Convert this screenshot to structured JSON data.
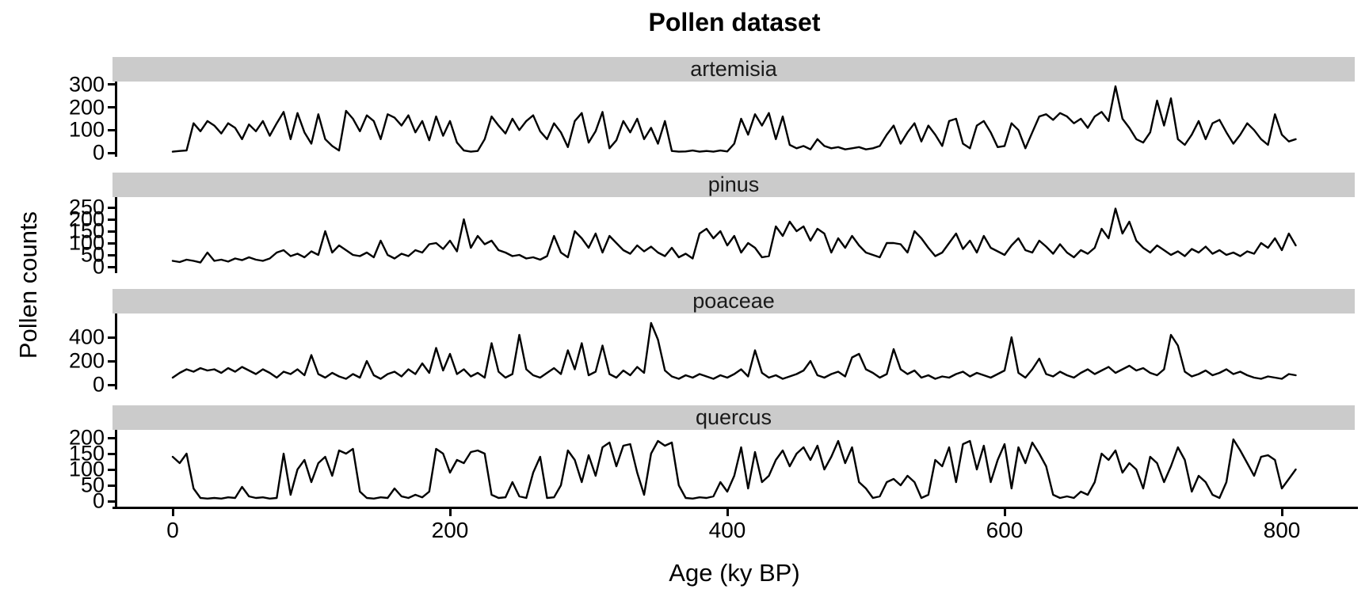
{
  "chart_data": {
    "type": "line",
    "title": "Pollen dataset",
    "xlabel": "Age (ky BP)",
    "ylabel": "Pollen counts",
    "legend": "none",
    "grid": "off",
    "line_color": "#000000",
    "strip_bg": "#CBCBCB",
    "xticks": [
      0,
      200,
      400,
      600,
      800
    ],
    "xlim": [
      0,
      812
    ],
    "x": {
      "start": 0,
      "step": 5,
      "unit": "ky BP"
    },
    "facets": [
      {
        "label": "artemisia",
        "yticks": [
          0,
          100,
          200,
          300
        ],
        "ylim": [
          0,
          300
        ],
        "values": [
          5,
          8,
          10,
          130,
          95,
          140,
          120,
          85,
          130,
          110,
          60,
          125,
          95,
          140,
          75,
          130,
          180,
          60,
          175,
          90,
          40,
          170,
          60,
          30,
          10,
          185,
          150,
          95,
          165,
          140,
          60,
          170,
          155,
          120,
          165,
          90,
          140,
          55,
          160,
          75,
          140,
          45,
          10,
          5,
          8,
          60,
          160,
          120,
          85,
          150,
          100,
          140,
          165,
          95,
          60,
          130,
          90,
          25,
          140,
          175,
          45,
          95,
          180,
          20,
          55,
          140,
          90,
          150,
          60,
          110,
          40,
          140,
          8,
          5,
          6,
          10,
          5,
          8,
          5,
          10,
          6,
          40,
          150,
          80,
          170,
          120,
          175,
          60,
          160,
          35,
          20,
          30,
          15,
          60,
          30,
          20,
          25,
          15,
          20,
          25,
          15,
          20,
          30,
          80,
          120,
          40,
          90,
          130,
          50,
          120,
          80,
          30,
          140,
          150,
          40,
          20,
          120,
          140,
          90,
          25,
          30,
          130,
          100,
          20,
          90,
          160,
          170,
          145,
          175,
          160,
          130,
          150,
          110,
          160,
          180,
          140,
          293,
          150,
          110,
          60,
          45,
          90,
          230,
          120,
          240,
          60,
          35,
          80,
          140,
          60,
          130,
          145,
          90,
          40,
          80,
          130,
          100,
          60,
          35,
          170,
          80,
          50,
          60
        ]
      },
      {
        "label": "pinus",
        "yticks": [
          0,
          50,
          100,
          150,
          200,
          250
        ],
        "ylim": [
          0,
          250
        ],
        "values": [
          25,
          20,
          30,
          25,
          18,
          60,
          25,
          30,
          22,
          35,
          28,
          40,
          30,
          25,
          35,
          60,
          70,
          45,
          55,
          40,
          65,
          50,
          150,
          60,
          90,
          70,
          50,
          45,
          60,
          40,
          110,
          50,
          35,
          55,
          45,
          70,
          60,
          95,
          100,
          75,
          110,
          65,
          200,
          80,
          130,
          95,
          110,
          70,
          60,
          45,
          50,
          35,
          40,
          30,
          45,
          130,
          60,
          40,
          150,
          120,
          80,
          140,
          60,
          130,
          100,
          70,
          55,
          90,
          65,
          85,
          60,
          45,
          80,
          40,
          55,
          35,
          140,
          160,
          120,
          150,
          90,
          130,
          60,
          100,
          80,
          40,
          45,
          170,
          130,
          190,
          150,
          170,
          110,
          160,
          140,
          60,
          120,
          80,
          130,
          90,
          60,
          50,
          40,
          100,
          100,
          95,
          60,
          150,
          120,
          80,
          45,
          60,
          100,
          140,
          75,
          110,
          60,
          130,
          80,
          65,
          50,
          90,
          120,
          70,
          60,
          110,
          85,
          55,
          95,
          60,
          40,
          70,
          55,
          80,
          160,
          120,
          245,
          140,
          190,
          110,
          80,
          60,
          90,
          70,
          50,
          65,
          45,
          75,
          60,
          85,
          55,
          70,
          50,
          60,
          45,
          65,
          55,
          100,
          80,
          120,
          70,
          140,
          90
        ]
      },
      {
        "label": "poaceae",
        "yticks": [
          0,
          200,
          400
        ],
        "ylim": [
          0,
          520
        ],
        "values": [
          60,
          100,
          130,
          110,
          140,
          120,
          130,
          100,
          140,
          110,
          150,
          120,
          90,
          130,
          100,
          60,
          110,
          90,
          130,
          80,
          250,
          90,
          60,
          100,
          70,
          50,
          90,
          60,
          200,
          80,
          50,
          90,
          110,
          70,
          130,
          90,
          180,
          100,
          310,
          120,
          260,
          90,
          130,
          70,
          100,
          60,
          350,
          110,
          60,
          90,
          420,
          130,
          80,
          60,
          100,
          140,
          90,
          290,
          130,
          350,
          80,
          110,
          330,
          90,
          60,
          120,
          80,
          150,
          100,
          520,
          380,
          120,
          70,
          50,
          80,
          60,
          90,
          70,
          50,
          80,
          60,
          90,
          130,
          70,
          290,
          100,
          60,
          80,
          50,
          70,
          90,
          120,
          200,
          80,
          60,
          90,
          110,
          70,
          230,
          260,
          130,
          100,
          60,
          90,
          300,
          130,
          90,
          120,
          60,
          80,
          50,
          70,
          60,
          90,
          110,
          70,
          100,
          80,
          60,
          90,
          120,
          400,
          100,
          60,
          130,
          220,
          90,
          70,
          110,
          80,
          60,
          100,
          130,
          90,
          120,
          150,
          100,
          130,
          160,
          120,
          140,
          100,
          80,
          130,
          420,
          330,
          110,
          70,
          90,
          120,
          80,
          100,
          130,
          90,
          110,
          80,
          60,
          50,
          70,
          60,
          50,
          90,
          80
        ]
      },
      {
        "label": "quercus",
        "yticks": [
          0,
          50,
          100,
          150,
          200
        ],
        "ylim": [
          0,
          200
        ],
        "values": [
          140,
          120,
          150,
          40,
          10,
          8,
          10,
          8,
          12,
          10,
          45,
          15,
          10,
          12,
          8,
          10,
          150,
          20,
          100,
          130,
          60,
          120,
          140,
          80,
          160,
          150,
          165,
          30,
          10,
          8,
          12,
          10,
          40,
          15,
          10,
          20,
          12,
          30,
          165,
          150,
          90,
          130,
          120,
          155,
          160,
          150,
          20,
          10,
          12,
          60,
          15,
          10,
          90,
          140,
          10,
          12,
          50,
          160,
          130,
          60,
          145,
          80,
          170,
          185,
          110,
          175,
          180,
          90,
          20,
          150,
          190,
          175,
          185,
          50,
          10,
          8,
          12,
          10,
          15,
          60,
          30,
          80,
          170,
          40,
          155,
          60,
          80,
          130,
          160,
          110,
          150,
          170,
          130,
          175,
          100,
          140,
          190,
          120,
          170,
          60,
          40,
          10,
          15,
          60,
          70,
          50,
          80,
          60,
          10,
          20,
          130,
          110,
          170,
          60,
          180,
          190,
          100,
          175,
          60,
          130,
          180,
          40,
          170,
          120,
          185,
          150,
          110,
          20,
          10,
          15,
          10,
          30,
          20,
          60,
          150,
          130,
          160,
          90,
          120,
          100,
          40,
          140,
          120,
          60,
          110,
          170,
          130,
          30,
          80,
          60,
          20,
          10,
          60,
          195,
          160,
          120,
          80,
          140,
          145,
          130,
          40,
          70,
          100
        ]
      }
    ]
  }
}
